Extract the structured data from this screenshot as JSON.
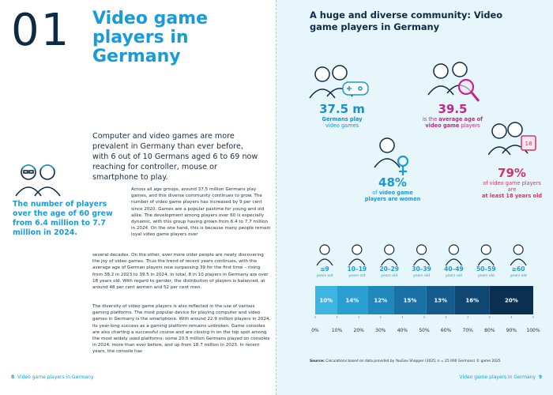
{
  "left_page": {
    "chapter": "01",
    "title": "Video game players in Germany",
    "intro": "Computer and video games are more prevalent in Germany than ever before, with 6 out of 10 Germans aged 6 to 69 now reaching for controller, mouse or smartphone to play.",
    "callout": "The number of players over the age of 60 grew from 6.4 million to 7.7 million in 2024.",
    "body": [
      "Across all age groups, around 37.5 million Germans play games, and this diverse community continues to grow. The number of video game players has increased by 9 per cent since 2020. Games are a popular pastime for young and old alike. The development among players over 60 is especially dynamic, with this group having grown from 6.4 to 7.7 million in 2024. On the one hand, this is because many people remain loyal video game players over",
      "several decades. On the other, ever more older people are newly discovering the joy of video games. Thus the trend of recent years continues, with the average age of German players now surpassing 39 for the first time – rising from 38.2 in 2023 to 39.5 in 2024. In total, 8 in 10 players in Germany are over 18 years old. With regard to gender, the distribution of players is balanced, at around 48 per cent women and 52 per cent men.",
      "The diversity of video game players is also reflected in the use of various gaming platforms. The most popular device for playing computer and video games in Germany is the smartphone. With around 22.9 million players in 2024, its year-long success as a gaming platform remains unbroken. Game consoles are also charting a successful course and are closing in on the top spot among the most widely used platforms: some 20.5 million Germans played on consoles in 2024, more than ever before, and up from 18.7 million in 2023. In recent years, the console has"
    ],
    "footer": {
      "page": "8",
      "text": "Video game players in Germany"
    }
  },
  "right_page": {
    "title": "A huge and diverse community: Video game players in Germany",
    "stats": [
      {
        "value": "37.5 m",
        "text_bold": "Germans play",
        "text": "video games"
      },
      {
        "value": "39.5",
        "text": "is the",
        "text_bold": "average age of video game",
        "text_after": "players"
      },
      {
        "value": "48%",
        "text": "of",
        "text_bold": "video game players are women"
      },
      {
        "value": "79%",
        "text": "of video game players are",
        "text_bold": "at least 18 years old"
      }
    ],
    "age_chart": {
      "categories": [
        "≤9",
        "10–19",
        "20–29",
        "30–39",
        "40–49",
        "50–59",
        "≥60"
      ],
      "category_unit": "years old",
      "values": [
        10,
        14,
        12,
        15,
        13,
        16,
        20
      ],
      "value_labels": [
        "10%",
        "14%",
        "12%",
        "15%",
        "13%",
        "16%",
        "20%"
      ],
      "colors": [
        "#3db5e2",
        "#2a9fd2",
        "#1f88bd",
        "#1a71a6",
        "#155b8c",
        "#104672",
        "#0b2f50"
      ],
      "xlim": [
        0,
        100
      ],
      "xticks": [
        {
          "value": 0,
          "label": "0%"
        },
        {
          "value": 10,
          "label": "10%"
        },
        {
          "value": 20,
          "label": "20%"
        },
        {
          "value": 30,
          "label": "30%"
        },
        {
          "value": 40,
          "label": "40%"
        },
        {
          "value": 50,
          "label": "50%"
        },
        {
          "value": 60,
          "label": "60%"
        },
        {
          "value": 70,
          "label": "70%"
        },
        {
          "value": 80,
          "label": "80%"
        },
        {
          "value": 90,
          "label": "90%"
        },
        {
          "value": 100,
          "label": "100%"
        }
      ]
    },
    "source": {
      "label": "Source:",
      "text": "Calculations based on data provided by YouGov Shopper (2025; n = 25 000 Germans) © game 2025"
    },
    "footer": {
      "text": "Video game players in Germany",
      "page": "9"
    }
  }
}
